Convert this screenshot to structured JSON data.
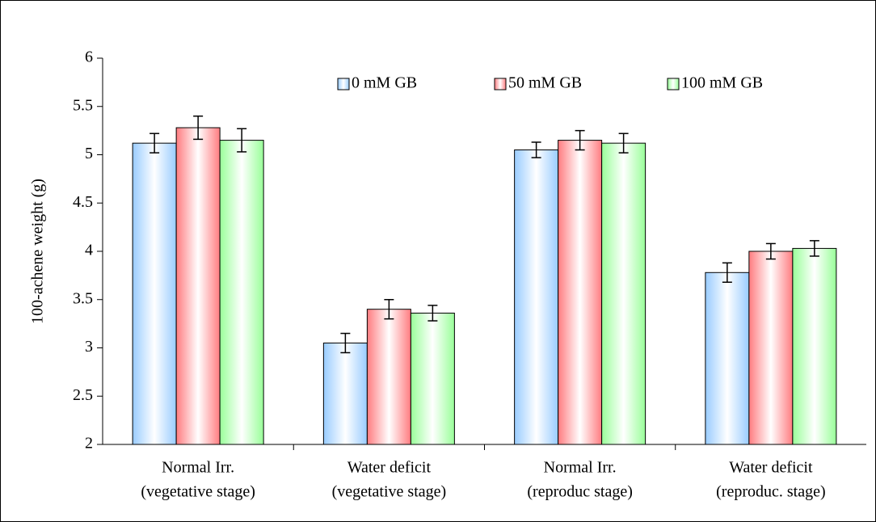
{
  "chart_data": {
    "type": "bar",
    "ylabel": "100-achene weight (g)",
    "categories": [
      [
        "Normal Irr.",
        "(vegetative stage)"
      ],
      [
        "Water deficit",
        "(vegetative stage)"
      ],
      [
        "Normal Irr.",
        "(reproduc stage)"
      ],
      [
        "Water deficit",
        "(reproduc. stage)"
      ]
    ],
    "series": [
      {
        "name": "0 mM GB",
        "color": "#99ccff",
        "values": [
          5.12,
          3.05,
          5.05,
          3.78
        ],
        "errors": [
          0.1,
          0.1,
          0.08,
          0.1
        ]
      },
      {
        "name": "50 mM GB",
        "color": "#ff7c80",
        "values": [
          5.28,
          3.4,
          5.15,
          4.0
        ],
        "errors": [
          0.12,
          0.1,
          0.1,
          0.08
        ]
      },
      {
        "name": "100 mM GB",
        "color": "#99ff99",
        "values": [
          5.15,
          3.36,
          5.12,
          4.03
        ],
        "errors": [
          0.12,
          0.08,
          0.1,
          0.08
        ]
      }
    ],
    "ylim": [
      2,
      6
    ],
    "yticks": [
      2,
      2.5,
      3,
      3.5,
      4,
      4.5,
      5,
      5.5,
      6
    ],
    "grid": false,
    "legend": "top"
  }
}
